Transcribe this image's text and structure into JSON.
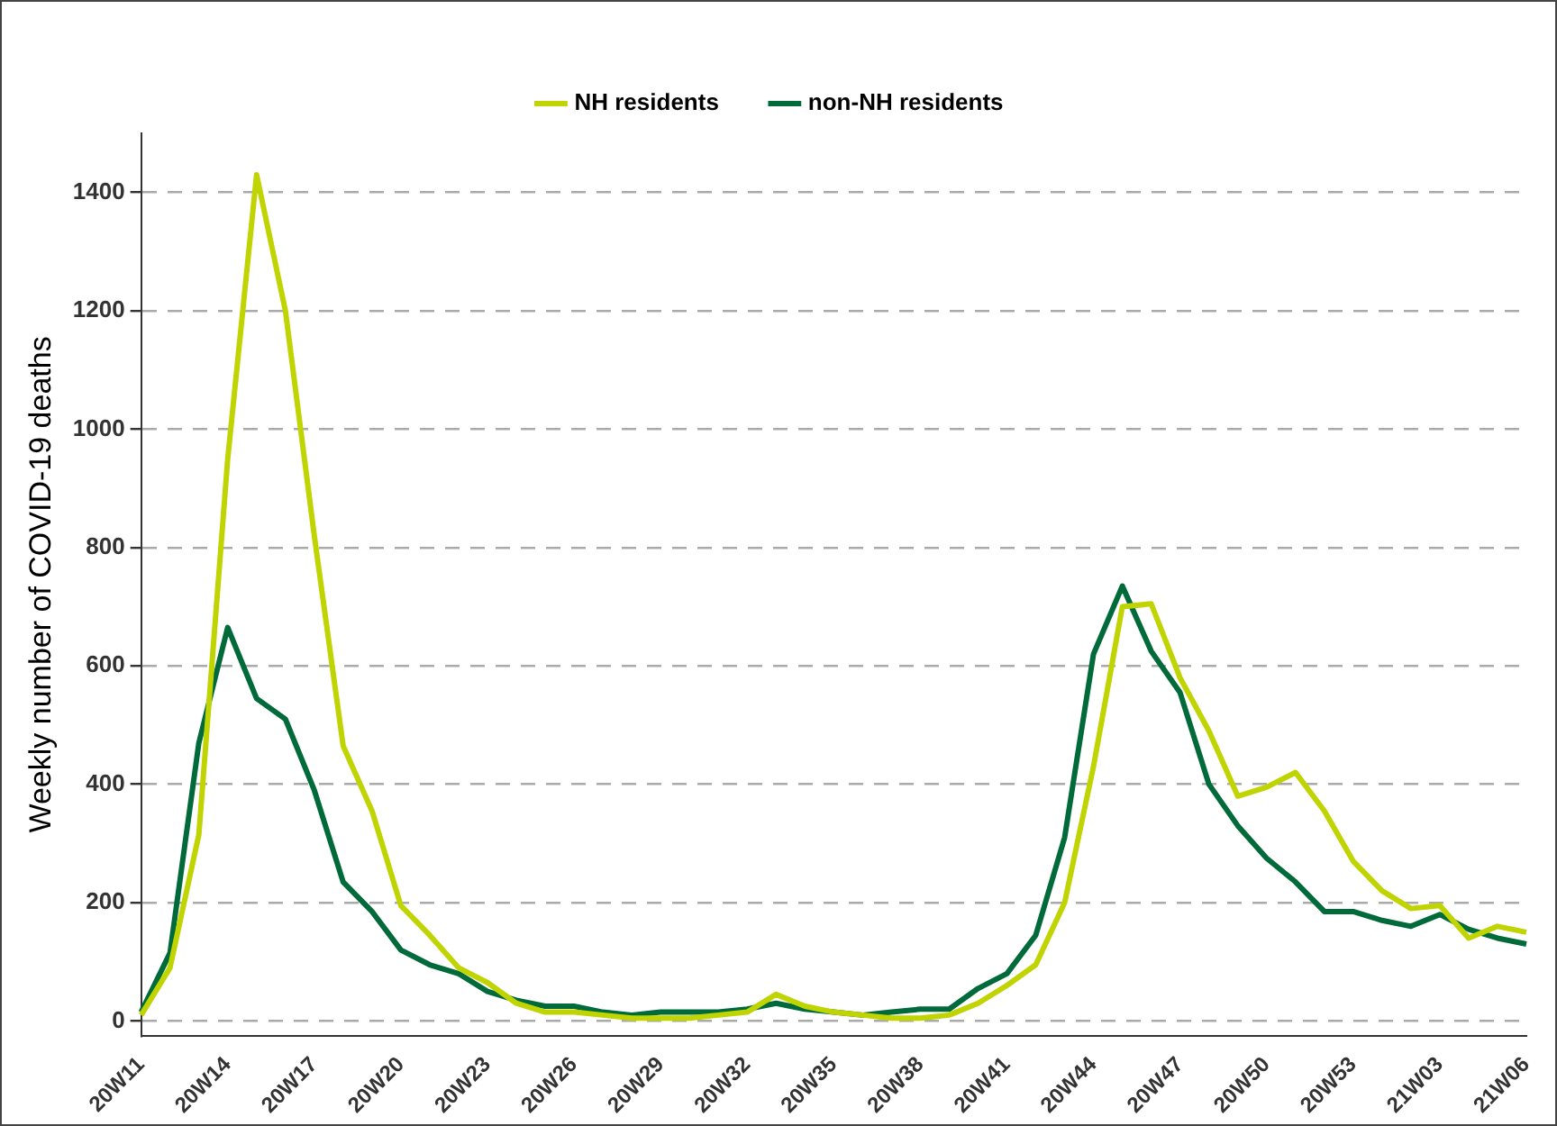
{
  "chart_data": {
    "type": "line",
    "ylabel": "Weekly number of COVID-19 deaths",
    "categories": [
      "20W11",
      null,
      null,
      "20W14",
      null,
      null,
      "20W17",
      null,
      null,
      "20W20",
      null,
      null,
      "20W23",
      null,
      null,
      "20W26",
      null,
      null,
      "20W29",
      null,
      null,
      "20W32",
      null,
      null,
      "20W35",
      null,
      null,
      "20W38",
      null,
      null,
      "20W41",
      null,
      null,
      "20W44",
      null,
      null,
      "20W47",
      null,
      null,
      "20W50",
      null,
      null,
      "20W53",
      null,
      null,
      "21W03",
      null,
      null,
      "21W06"
    ],
    "series": [
      {
        "name": "NH residents",
        "color": "#bfd400",
        "values": [
          10,
          90,
          315,
          950,
          1430,
          1200,
          820,
          465,
          355,
          195,
          145,
          90,
          65,
          30,
          15,
          15,
          10,
          5,
          5,
          5,
          10,
          15,
          45,
          25,
          15,
          10,
          5,
          5,
          10,
          30,
          60,
          95,
          200,
          430,
          700,
          705,
          580,
          490,
          380,
          395,
          420,
          355,
          270,
          220,
          190,
          195,
          140,
          160,
          150
        ]
      },
      {
        "name": "non-NH residents",
        "color": "#006a3a",
        "values": [
          15,
          115,
          470,
          665,
          545,
          510,
          390,
          235,
          185,
          120,
          95,
          80,
          50,
          35,
          25,
          25,
          15,
          10,
          15,
          15,
          15,
          20,
          30,
          20,
          15,
          10,
          15,
          20,
          20,
          55,
          80,
          145,
          310,
          620,
          735,
          625,
          555,
          400,
          330,
          275,
          235,
          185,
          185,
          170,
          160,
          180,
          155,
          140,
          130
        ]
      }
    ],
    "ylim": [
      -25,
      1500
    ],
    "yticks": [
      0,
      200,
      400,
      600,
      800,
      1000,
      1200,
      1400
    ],
    "grid": "y",
    "legend": "top",
    "marker": "none",
    "line_style": "solid"
  }
}
